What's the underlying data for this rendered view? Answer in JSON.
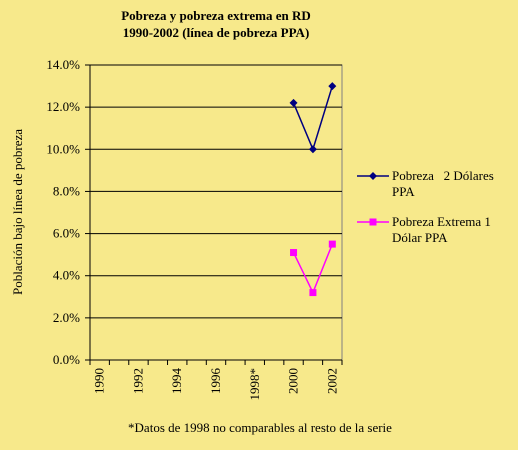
{
  "chart_data": {
    "type": "line",
    "title": [
      "Pobreza y pobreza extrema en RD",
      "1990-2002 (línea de pobreza PPA)"
    ],
    "y_label": "Población bajo línea de pobreza",
    "note": "*Datos de 1998 no comparables al resto de la serie",
    "categories": [
      "1990",
      null,
      "1992",
      null,
      "1994",
      null,
      "1996",
      null,
      "1998*",
      null,
      "2000",
      null,
      "2002"
    ],
    "series": [
      {
        "name": "Pobreza   2 Dólares PPA",
        "color": "#000080",
        "marker": "diamond",
        "values": [
          null,
          null,
          null,
          null,
          null,
          null,
          null,
          null,
          null,
          null,
          12.2,
          10.0,
          13.0
        ]
      },
      {
        "name": "Pobreza Extrema 1 Dólar PPA",
        "color": "#ff00ff",
        "marker": "square",
        "values": [
          null,
          null,
          null,
          null,
          null,
          null,
          null,
          null,
          null,
          null,
          5.1,
          3.2,
          5.5
        ]
      }
    ],
    "ylim": [
      0,
      14
    ],
    "yticks": [
      {
        "value": 0,
        "label": "0.0%"
      },
      {
        "value": 2,
        "label": "2.0%"
      },
      {
        "value": 4,
        "label": "4.0%"
      },
      {
        "value": 6,
        "label": "6.0%"
      },
      {
        "value": 8,
        "label": "8.0%"
      },
      {
        "value": 10,
        "label": "10.0%"
      },
      {
        "value": 12,
        "label": "12.0%"
      },
      {
        "value": 14,
        "label": "14.0%"
      }
    ],
    "grid": true,
    "legend": "right"
  }
}
